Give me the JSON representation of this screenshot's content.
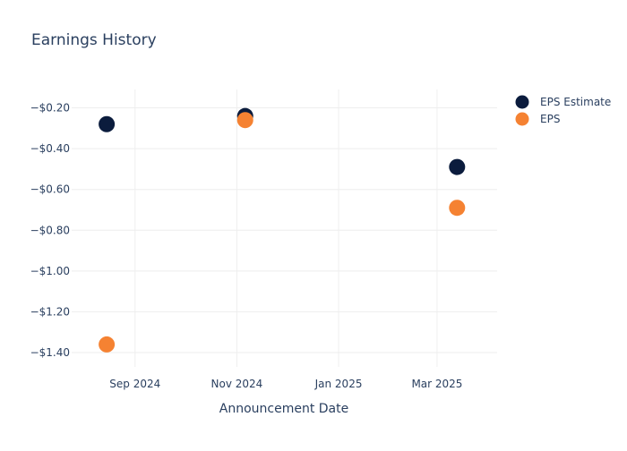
{
  "chart_data": {
    "type": "scatter",
    "title": "Earnings History",
    "xlabel": "Announcement Date",
    "ylabel": "",
    "x_tick_labels": [
      "Sep 2024",
      "Nov 2024",
      "Jan 2025",
      "Mar 2025"
    ],
    "x_tick_values": [
      "2024-09-01",
      "2024-11-01",
      "2025-01-01",
      "2025-03-01"
    ],
    "xlim": [
      "2024-07-25",
      "2025-04-06"
    ],
    "y_ticks": [
      -0.2,
      -0.4,
      -0.6,
      -0.8,
      -1.0,
      -1.2,
      -1.4
    ],
    "y_tick_labels": [
      "−$0.20",
      "−$0.40",
      "−$0.60",
      "−$0.80",
      "−$1.00",
      "−$1.20",
      "−$1.40"
    ],
    "ylim": [
      -1.47,
      -0.11
    ],
    "grid": true,
    "legend_position": "top-right",
    "series": [
      {
        "name": "EPS Estimate",
        "color": "#0b1c3d",
        "points": [
          {
            "x": "2024-08-15",
            "y": -0.28
          },
          {
            "x": "2024-11-06",
            "y": -0.24
          },
          {
            "x": "2025-03-13",
            "y": -0.49
          }
        ]
      },
      {
        "name": "EPS",
        "color": "#f58232",
        "points": [
          {
            "x": "2024-08-15",
            "y": -1.36
          },
          {
            "x": "2024-11-06",
            "y": -0.26
          },
          {
            "x": "2025-03-13",
            "y": -0.69
          }
        ]
      }
    ]
  }
}
